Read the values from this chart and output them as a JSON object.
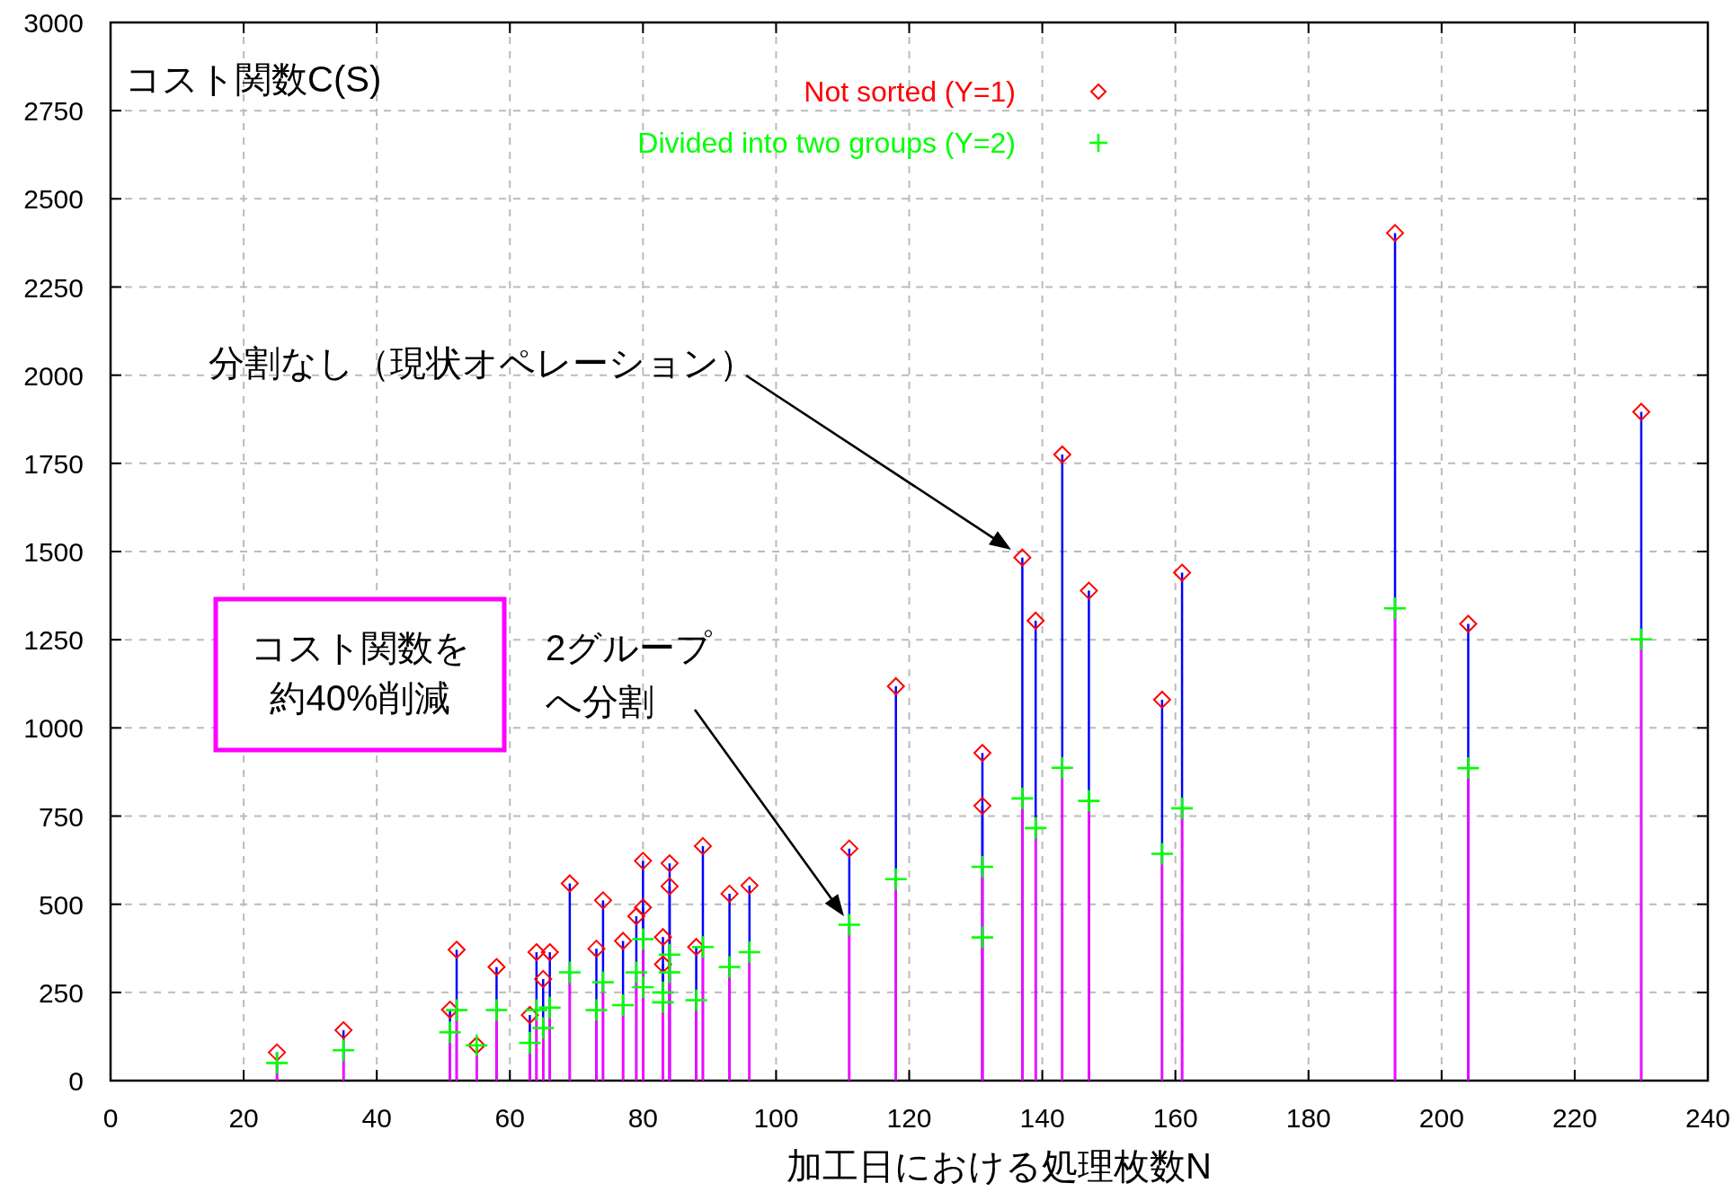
{
  "chart_data": {
    "type": "lollipop",
    "ylabel": "コスト関数C(S)",
    "xlabel": "加工日における処理枚数N",
    "x": [
      25,
      35,
      51,
      52,
      55,
      58,
      63,
      64,
      65,
      66,
      69,
      73,
      74,
      77,
      79,
      80,
      80,
      83,
      83,
      84,
      84,
      88,
      89,
      93,
      96,
      111,
      118,
      131,
      131,
      137,
      139,
      143,
      147,
      158,
      161,
      193,
      204,
      230
    ],
    "series": [
      {
        "name": "Not sorted (Y=1)",
        "color": "#ff0000",
        "marker": "diamond",
        "values": [
          80,
          143,
          201,
          371,
          100,
          322,
          186,
          364,
          288,
          364,
          559,
          374,
          511,
          396,
          466,
          623,
          491,
          407,
          330,
          616,
          551,
          379,
          665,
          530,
          553,
          658,
          1118,
          929,
          779,
          1483,
          1304,
          1775,
          1389,
          1080,
          1440,
          2403,
          1295,
          1896
        ]
      },
      {
        "name": "Divided into two groups (Y=2)",
        "color": "#00ff00",
        "marker": "cross",
        "values": [
          50,
          86,
          137,
          200,
          100,
          200,
          107,
          200,
          149,
          207,
          307,
          200,
          279,
          214,
          307,
          401,
          265,
          250,
          222,
          357,
          307,
          228,
          379,
          322,
          364,
          442,
          571,
          606,
          406,
          800,
          716,
          887,
          793,
          643,
          772,
          1339,
          886,
          1251
        ]
      }
    ],
    "xlim": [
      0,
      240
    ],
    "xticks": [
      0,
      20,
      40,
      60,
      80,
      100,
      120,
      140,
      160,
      180,
      200,
      220,
      240
    ],
    "ylim": [
      0,
      3000
    ],
    "yticks": [
      0,
      250,
      500,
      750,
      1000,
      1250,
      1500,
      1750,
      2000,
      2250,
      2500,
      2750,
      3000
    ],
    "grid": true,
    "legend": "top",
    "annotations": [
      "分割なし（現状オペレーション）",
      "2グループへ分割",
      "コスト関数を約40%削減"
    ]
  }
}
